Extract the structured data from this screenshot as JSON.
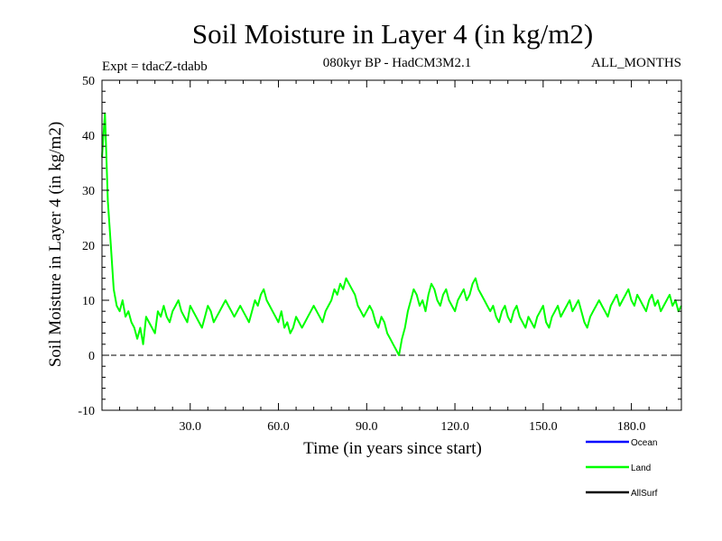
{
  "chart_data": {
    "type": "line",
    "title": "Soil Moisture in Layer 4 (in kg/m2)",
    "subtitle_left": "Expt = tdacZ-tdabb",
    "subtitle_center": "080kyr BP - HadCM3M2.1",
    "subtitle_right": "ALL_MONTHS",
    "xlabel": "Time (in years since start)",
    "ylabel": "Soil Moisture in Layer 4 (in kg/m2)",
    "xlim": [
      0,
      197
    ],
    "ylim": [
      -10,
      50
    ],
    "xticks": [
      30,
      60,
      90,
      120,
      150,
      180
    ],
    "xtick_labels": [
      "30.0",
      "60.0",
      "90.0",
      "120.0",
      "150.0",
      "180.0"
    ],
    "yticks": [
      -10,
      0,
      10,
      20,
      30,
      40,
      50
    ],
    "ytick_labels": [
      "-10",
      "0",
      "10",
      "20",
      "30",
      "40",
      "50"
    ],
    "reference_line": 0,
    "legend_position": "bottom-right",
    "series": [
      {
        "name": "Ocean",
        "color": "#0000ff",
        "values": []
      },
      {
        "name": "Land",
        "color": "#00ff00",
        "x": [
          0,
          1,
          2,
          3,
          4,
          5,
          6,
          7,
          8,
          9,
          10,
          11,
          12,
          13,
          14,
          15,
          16,
          17,
          18,
          19,
          20,
          21,
          22,
          23,
          24,
          25,
          26,
          27,
          28,
          29,
          30,
          31,
          32,
          33,
          34,
          35,
          36,
          37,
          38,
          39,
          40,
          41,
          42,
          43,
          44,
          45,
          46,
          47,
          48,
          49,
          50,
          51,
          52,
          53,
          54,
          55,
          56,
          57,
          58,
          59,
          60,
          61,
          62,
          63,
          64,
          65,
          66,
          67,
          68,
          69,
          70,
          71,
          72,
          73,
          74,
          75,
          76,
          77,
          78,
          79,
          80,
          81,
          82,
          83,
          84,
          85,
          86,
          87,
          88,
          89,
          90,
          91,
          92,
          93,
          94,
          95,
          96,
          97,
          98,
          99,
          100,
          101,
          102,
          103,
          104,
          105,
          106,
          107,
          108,
          109,
          110,
          111,
          112,
          113,
          114,
          115,
          116,
          117,
          118,
          119,
          120,
          121,
          122,
          123,
          124,
          125,
          126,
          127,
          128,
          129,
          130,
          131,
          132,
          133,
          134,
          135,
          136,
          137,
          138,
          139,
          140,
          141,
          142,
          143,
          144,
          145,
          146,
          147,
          148,
          149,
          150,
          151,
          152,
          153,
          154,
          155,
          156,
          157,
          158,
          159,
          160,
          161,
          162,
          163,
          164,
          165,
          166,
          167,
          168,
          169,
          170,
          171,
          172,
          173,
          174,
          175,
          176,
          177,
          178,
          179,
          180,
          181,
          182,
          183,
          184,
          185,
          186,
          187,
          188,
          189,
          190,
          191,
          192,
          193,
          194,
          195,
          196,
          197
        ],
        "values": [
          36,
          44,
          28,
          20,
          12,
          9,
          8,
          10,
          7,
          8,
          6,
          5,
          3,
          5,
          2,
          7,
          6,
          5,
          4,
          8,
          7,
          9,
          7,
          6,
          8,
          9,
          10,
          8,
          7,
          6,
          9,
          8,
          7,
          6,
          5,
          7,
          9,
          8,
          6,
          7,
          8,
          9,
          10,
          9,
          8,
          7,
          8,
          9,
          8,
          7,
          6,
          8,
          10,
          9,
          11,
          12,
          10,
          9,
          8,
          7,
          6,
          8,
          5,
          6,
          4,
          5,
          7,
          6,
          5,
          6,
          7,
          8,
          9,
          8,
          7,
          6,
          8,
          9,
          10,
          12,
          11,
          13,
          12,
          14,
          13,
          12,
          11,
          9,
          8,
          7,
          8,
          9,
          8,
          6,
          5,
          7,
          6,
          4,
          3,
          2,
          1,
          0,
          3,
          5,
          8,
          10,
          12,
          11,
          9,
          10,
          8,
          11,
          13,
          12,
          10,
          9,
          11,
          12,
          10,
          9,
          8,
          10,
          11,
          12,
          10,
          11,
          13,
          14,
          12,
          11,
          10,
          9,
          8,
          9,
          7,
          6,
          8,
          9,
          7,
          6,
          8,
          9,
          7,
          6,
          5,
          7,
          6,
          5,
          7,
          8,
          9,
          6,
          5,
          7,
          8,
          9,
          7,
          8,
          9,
          10,
          8,
          9,
          10,
          8,
          6,
          5,
          7,
          8,
          9,
          10,
          9,
          8,
          7,
          9,
          10,
          11,
          9,
          10,
          11,
          12,
          10,
          9,
          11,
          10,
          9,
          8,
          10,
          11,
          9,
          10,
          8,
          9,
          10,
          11,
          9,
          10,
          8,
          9
        ]
      },
      {
        "name": "AllSurf",
        "color": "#000000",
        "values": []
      }
    ]
  }
}
